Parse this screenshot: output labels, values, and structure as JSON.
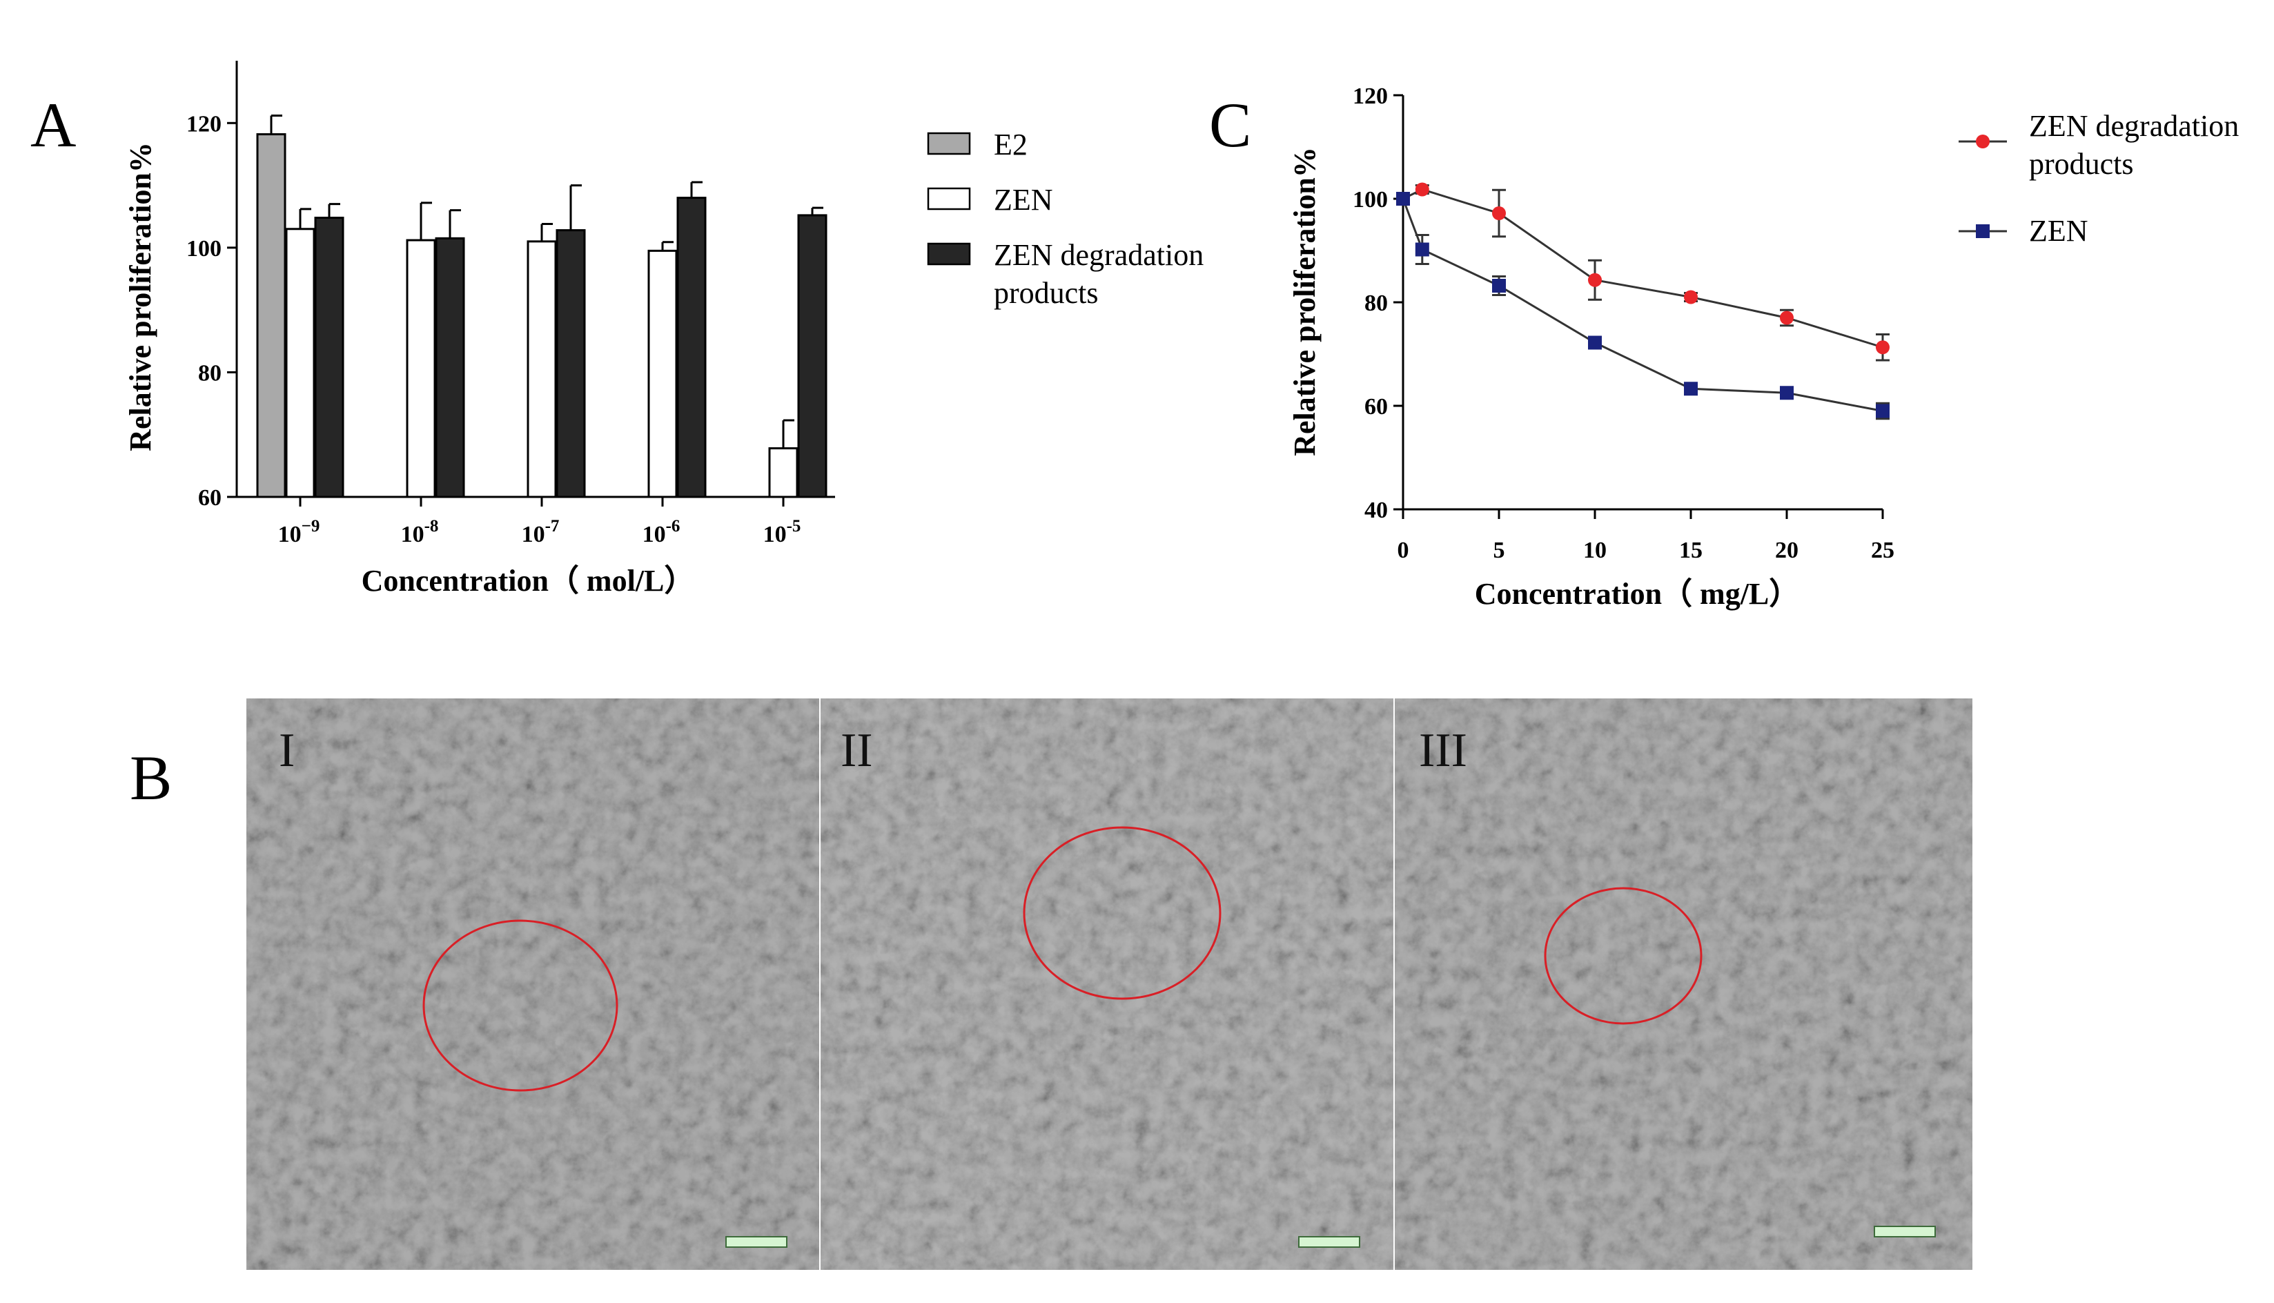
{
  "panels": {
    "A": "A",
    "B": "B",
    "C": "C"
  },
  "micrographs": {
    "labels": [
      "I",
      "II",
      "III"
    ]
  },
  "chart_data": [
    {
      "id": "A",
      "type": "bar",
      "title": "",
      "ylabel": "Relative proliferation%",
      "xlabel": "Concentration（ mol/L）",
      "ylim": [
        60,
        130
      ],
      "yticks": [
        60,
        80,
        100,
        120
      ],
      "categories": [
        "10^-9",
        "10^-8",
        "10^-7",
        "10^-6",
        "10^-5"
      ],
      "category_labels": [
        {
          "base": "10",
          "exp": "−9"
        },
        {
          "base": "10",
          "exp": "-8"
        },
        {
          "base": "10",
          "exp": "-7"
        },
        {
          "base": "10",
          "exp": "-6"
        },
        {
          "base": "10",
          "exp": "-5"
        }
      ],
      "series": [
        {
          "name": "E2",
          "color": "#a9a9a9",
          "values": [
            118.2,
            null,
            null,
            null,
            null
          ],
          "errors": [
            3.0,
            null,
            null,
            null,
            null
          ]
        },
        {
          "name": "ZEN",
          "color": "#ffffff",
          "values": [
            103,
            101.2,
            101,
            99.5,
            67.8
          ],
          "errors": [
            3.2,
            6.0,
            2.8,
            1.4,
            4.5
          ]
        },
        {
          "name": "ZEN degradation products",
          "color": "#262626",
          "values": [
            104.8,
            101.5,
            102.8,
            108,
            105.2
          ],
          "errors": [
            2.2,
            4.5,
            7.2,
            2.5,
            1.2
          ]
        }
      ],
      "legend": {
        "position": "right",
        "entries": [
          {
            "lines": [
              "E2"
            ]
          },
          {
            "lines": [
              "ZEN"
            ]
          },
          {
            "lines": [
              "ZEN degradation",
              "products"
            ]
          }
        ]
      }
    },
    {
      "id": "C",
      "type": "line",
      "title": "",
      "ylabel": "Relative proliferation%",
      "xlabel": "Concentration（ mg/L）",
      "ylim": [
        40,
        120
      ],
      "yticks": [
        40,
        60,
        80,
        100,
        120
      ],
      "xlim": [
        0,
        25
      ],
      "xticks": [
        0,
        5,
        10,
        15,
        20,
        25
      ],
      "series": [
        {
          "name": "ZEN degradation products",
          "color": "#e8262a",
          "marker": "circle",
          "x": [
            0,
            1,
            5,
            10,
            15,
            20,
            25
          ],
          "y": [
            100,
            101.8,
            97.2,
            84.3,
            81,
            77,
            71.3
          ],
          "errors": [
            0,
            0.8,
            4.5,
            3.8,
            0.8,
            1.5,
            2.5
          ]
        },
        {
          "name": "ZEN",
          "color": "#1a237e",
          "marker": "square",
          "x": [
            0,
            1,
            5,
            10,
            15,
            20,
            25
          ],
          "y": [
            100,
            90.2,
            83.2,
            72.2,
            63.3,
            62.5,
            59
          ],
          "errors": [
            0,
            2.8,
            1.8,
            0.8,
            0.8,
            0.6,
            1.5
          ]
        }
      ],
      "legend": {
        "position": "right",
        "entries": [
          {
            "lines": [
              "ZEN degradation",
              "products"
            ]
          },
          {
            "lines": [
              "ZEN"
            ]
          }
        ]
      }
    }
  ]
}
